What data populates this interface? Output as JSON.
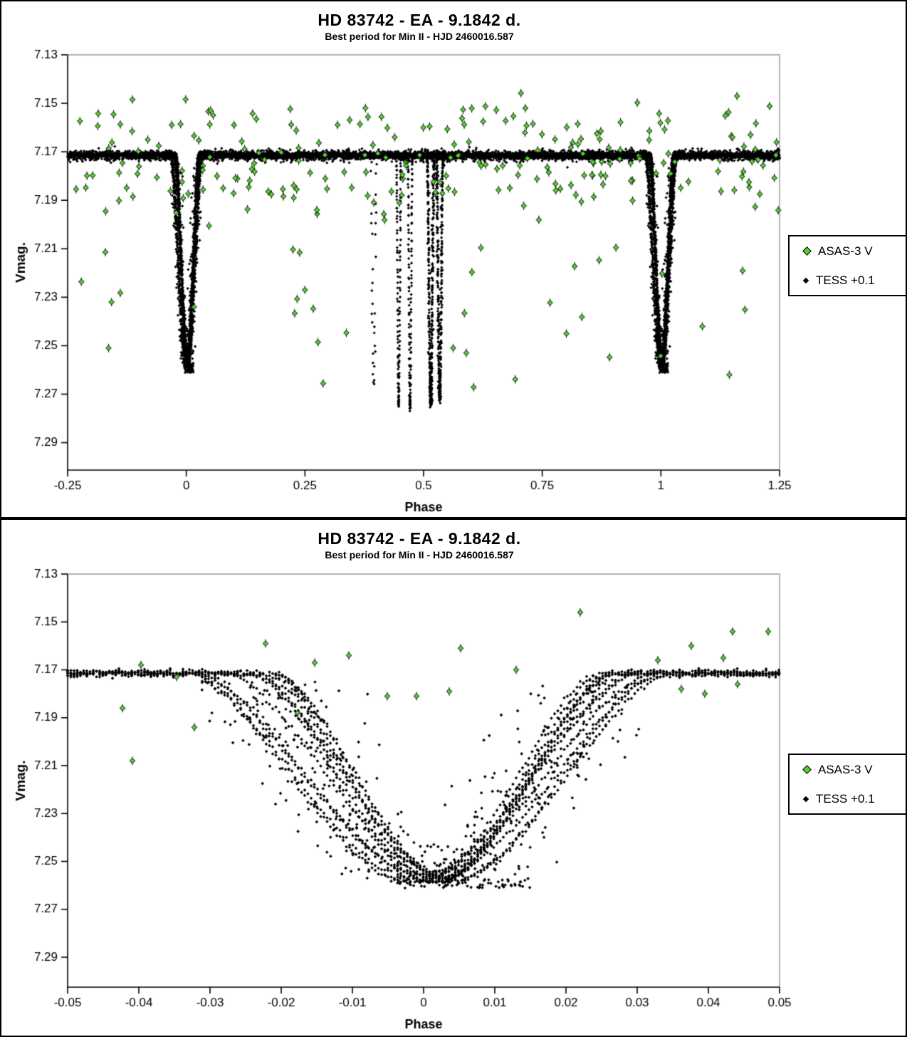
{
  "page": {
    "kind": "phased light curve report",
    "star": "HD 83742"
  },
  "colors": {
    "asas": "#53d02e",
    "asas_edge": "#000000",
    "tess": "#000000",
    "frame_gray": "#9a9a9a",
    "axis_black": "#000000"
  },
  "chart_data": [
    {
      "type": "scatter",
      "title": "HD 83742  - EA - 9.1842 d.",
      "subtitle": "Best period for Min II - HJD 2460016.587",
      "xlabel": "Phase",
      "ylabel": "Vmag.",
      "x_range": [
        -0.25,
        1.25
      ],
      "y_range": [
        7.3013,
        7.13
      ],
      "y_axis_inverted": true,
      "grid": false,
      "legend_position": "right-outside",
      "legend": [
        {
          "label": "ASAS-3 V",
          "marker": "diamond",
          "color": "#53d02e"
        },
        {
          "label": "TESS +0.1",
          "marker": "diamond",
          "color": "#000000"
        }
      ],
      "x_ticks": {
        "values": [
          -0.25,
          0,
          0.25,
          0.5,
          0.75,
          1,
          1.25
        ],
        "labels": [
          "-0.25",
          "0",
          "0.25",
          "0.5",
          "0.75",
          "1",
          "1.25"
        ]
      },
      "y_ticks": {
        "values": [
          7.13,
          7.15,
          7.17,
          7.19,
          7.21,
          7.23,
          7.25,
          7.27,
          7.29
        ],
        "labels": [
          "7.13",
          "7.15",
          "7.17",
          "7.19",
          "7.21",
          "7.23",
          "7.25",
          "7.27",
          "7.29"
        ]
      },
      "series": [
        {
          "name": "TESS +0.1",
          "model": {
            "baseline_mag": 7.1715,
            "baseline_noise_sigma": 0.0008,
            "baseline_phase_step": 0.0004,
            "min2_eclipse": {
              "comment": "deep eclipse aligned at phase 0 and 1 (period fits Min II)",
              "centers": [
                0,
                1
              ],
              "depth_mag": 0.0855,
              "half_width_phase": 0.029,
              "minimum_mag": 7.257,
              "n_overlapping_tracks": 12,
              "flat_bottom_phase_range": [
                -0.004,
                0.007
              ]
            },
            "min1_eclipses": [
              {
                "center": 0.395,
                "depth_mag": 0.094,
                "half_width_phase": 0.0062,
                "minimum_mag": 7.266,
                "style": "sparse"
              },
              {
                "center": 0.4475,
                "depth_mag": 0.1025,
                "half_width_phase": 0.005,
                "minimum_mag": 7.274,
                "style": "dense"
              },
              {
                "center": 0.4715,
                "depth_mag": 0.104,
                "half_width_phase": 0.0048,
                "minimum_mag": 7.276,
                "style": "dense"
              },
              {
                "center": 0.515,
                "depth_mag": 0.1015,
                "half_width_phase": 0.0075,
                "minimum_mag": 7.273,
                "style": "thick"
              },
              {
                "center": 0.534,
                "depth_mag": 0.1005,
                "half_width_phase": 0.007,
                "minimum_mag": 7.272,
                "style": "thick"
              }
            ]
          }
        },
        {
          "name": "ASAS-3 V",
          "model": {
            "count": 270,
            "phase_range": [
              -0.248,
              1.248
            ],
            "mag_clip": [
              7.141,
              7.2745
            ],
            "mixture": [
              {
                "weight": 0.36,
                "mean": 7.163,
                "sigma": 0.0075
              },
              {
                "weight": 0.42,
                "mean": 7.1815,
                "sigma": 0.0062
              },
              {
                "weight": 0.22,
                "uniform_min": 7.147,
                "uniform_max": 7.272
              }
            ],
            "seed": 20230416
          }
        }
      ]
    },
    {
      "type": "scatter",
      "title": "HD 83742  - EA - 9.1842 d.",
      "subtitle": "Best period for Min II - HJD 2460016.587",
      "xlabel": "Phase",
      "ylabel": "Vmag.",
      "x_range": [
        -0.05,
        0.05
      ],
      "y_range": [
        7.3025,
        7.13
      ],
      "y_axis_inverted": true,
      "grid": false,
      "legend_position": "right-outside",
      "legend": [
        {
          "label": "ASAS-3 V",
          "marker": "diamond",
          "color": "#53d02e"
        },
        {
          "label": "TESS +0.1",
          "marker": "diamond",
          "color": "#000000"
        }
      ],
      "x_ticks": {
        "values": [
          -0.05,
          -0.04,
          -0.03,
          -0.02,
          -0.01,
          0,
          0.01,
          0.02,
          0.03,
          0.04,
          0.05
        ],
        "labels": [
          "-0.05",
          "-0.04",
          "-0.03",
          "-0.02",
          "-0.01",
          "0",
          "0.01",
          "0.02",
          "0.03",
          "0.04",
          "0.05"
        ]
      },
      "y_ticks": {
        "values": [
          7.13,
          7.15,
          7.17,
          7.19,
          7.21,
          7.23,
          7.25,
          7.27,
          7.29
        ],
        "labels": [
          "7.13",
          "7.15",
          "7.17",
          "7.19",
          "7.21",
          "7.23",
          "7.25",
          "7.27",
          "7.29"
        ]
      },
      "series": [
        {
          "name": "TESS +0.1",
          "model_ref": "same Min II eclipse data as chart 0, zoomed to phase 0"
        },
        {
          "name": "ASAS-3 V",
          "points_phase_mag": [
            [
              -0.0423,
              7.186
            ],
            [
              -0.0409,
              7.208
            ],
            [
              -0.0397,
              7.168
            ],
            [
              -0.0347,
              7.173
            ],
            [
              -0.0322,
              7.194
            ],
            [
              -0.0222,
              7.159
            ],
            [
              -0.0177,
              7.188
            ],
            [
              -0.0153,
              7.167
            ],
            [
              -0.0105,
              7.164
            ],
            [
              -0.0051,
              7.181
            ],
            [
              -0.001,
              7.181
            ],
            [
              0.0036,
              7.179
            ],
            [
              0.0052,
              7.161
            ],
            [
              0.013,
              7.17
            ],
            [
              0.022,
              7.146
            ],
            [
              0.0329,
              7.166
            ],
            [
              0.0362,
              7.178
            ],
            [
              0.0376,
              7.16
            ],
            [
              0.0395,
              7.18
            ],
            [
              0.0421,
              7.165
            ],
            [
              0.0434,
              7.154
            ],
            [
              0.0441,
              7.176
            ],
            [
              0.0484,
              7.154
            ]
          ]
        }
      ]
    }
  ]
}
